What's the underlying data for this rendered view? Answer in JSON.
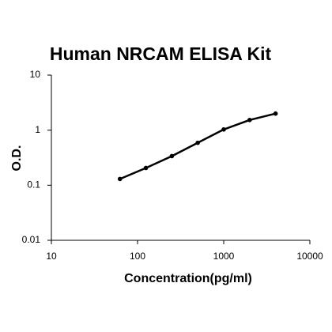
{
  "chart_data": {
    "type": "line",
    "title": "Human NRCAM ELISA Kit",
    "x_label": "Concentration(pg/ml)",
    "y_label": "O.D.",
    "x": [
      62.5,
      125,
      250,
      500,
      1000,
      2000,
      4000
    ],
    "values": [
      0.13,
      0.206,
      0.338,
      0.59,
      1.03,
      1.53,
      2.0
    ],
    "color": "#000000",
    "x_log": true,
    "y_log": true,
    "xlim": [
      10,
      10000
    ],
    "xticks": [
      10,
      100,
      1000,
      10000
    ],
    "ylim": [
      0.01,
      10
    ],
    "yticks": [
      0.01,
      0.1,
      1,
      10
    ]
  }
}
